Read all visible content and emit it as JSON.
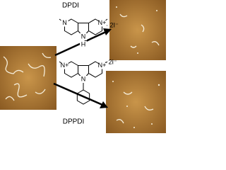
{
  "molecules": [
    {
      "name": "DPDI",
      "counterion": "· 2I⁻",
      "atoms": [
        "N",
        "N+",
        "N",
        "H"
      ]
    },
    {
      "name": "DPPDI",
      "counterion": "· 2I⁻",
      "atoms": [
        "N+",
        "N+",
        "N"
      ]
    }
  ]
}
